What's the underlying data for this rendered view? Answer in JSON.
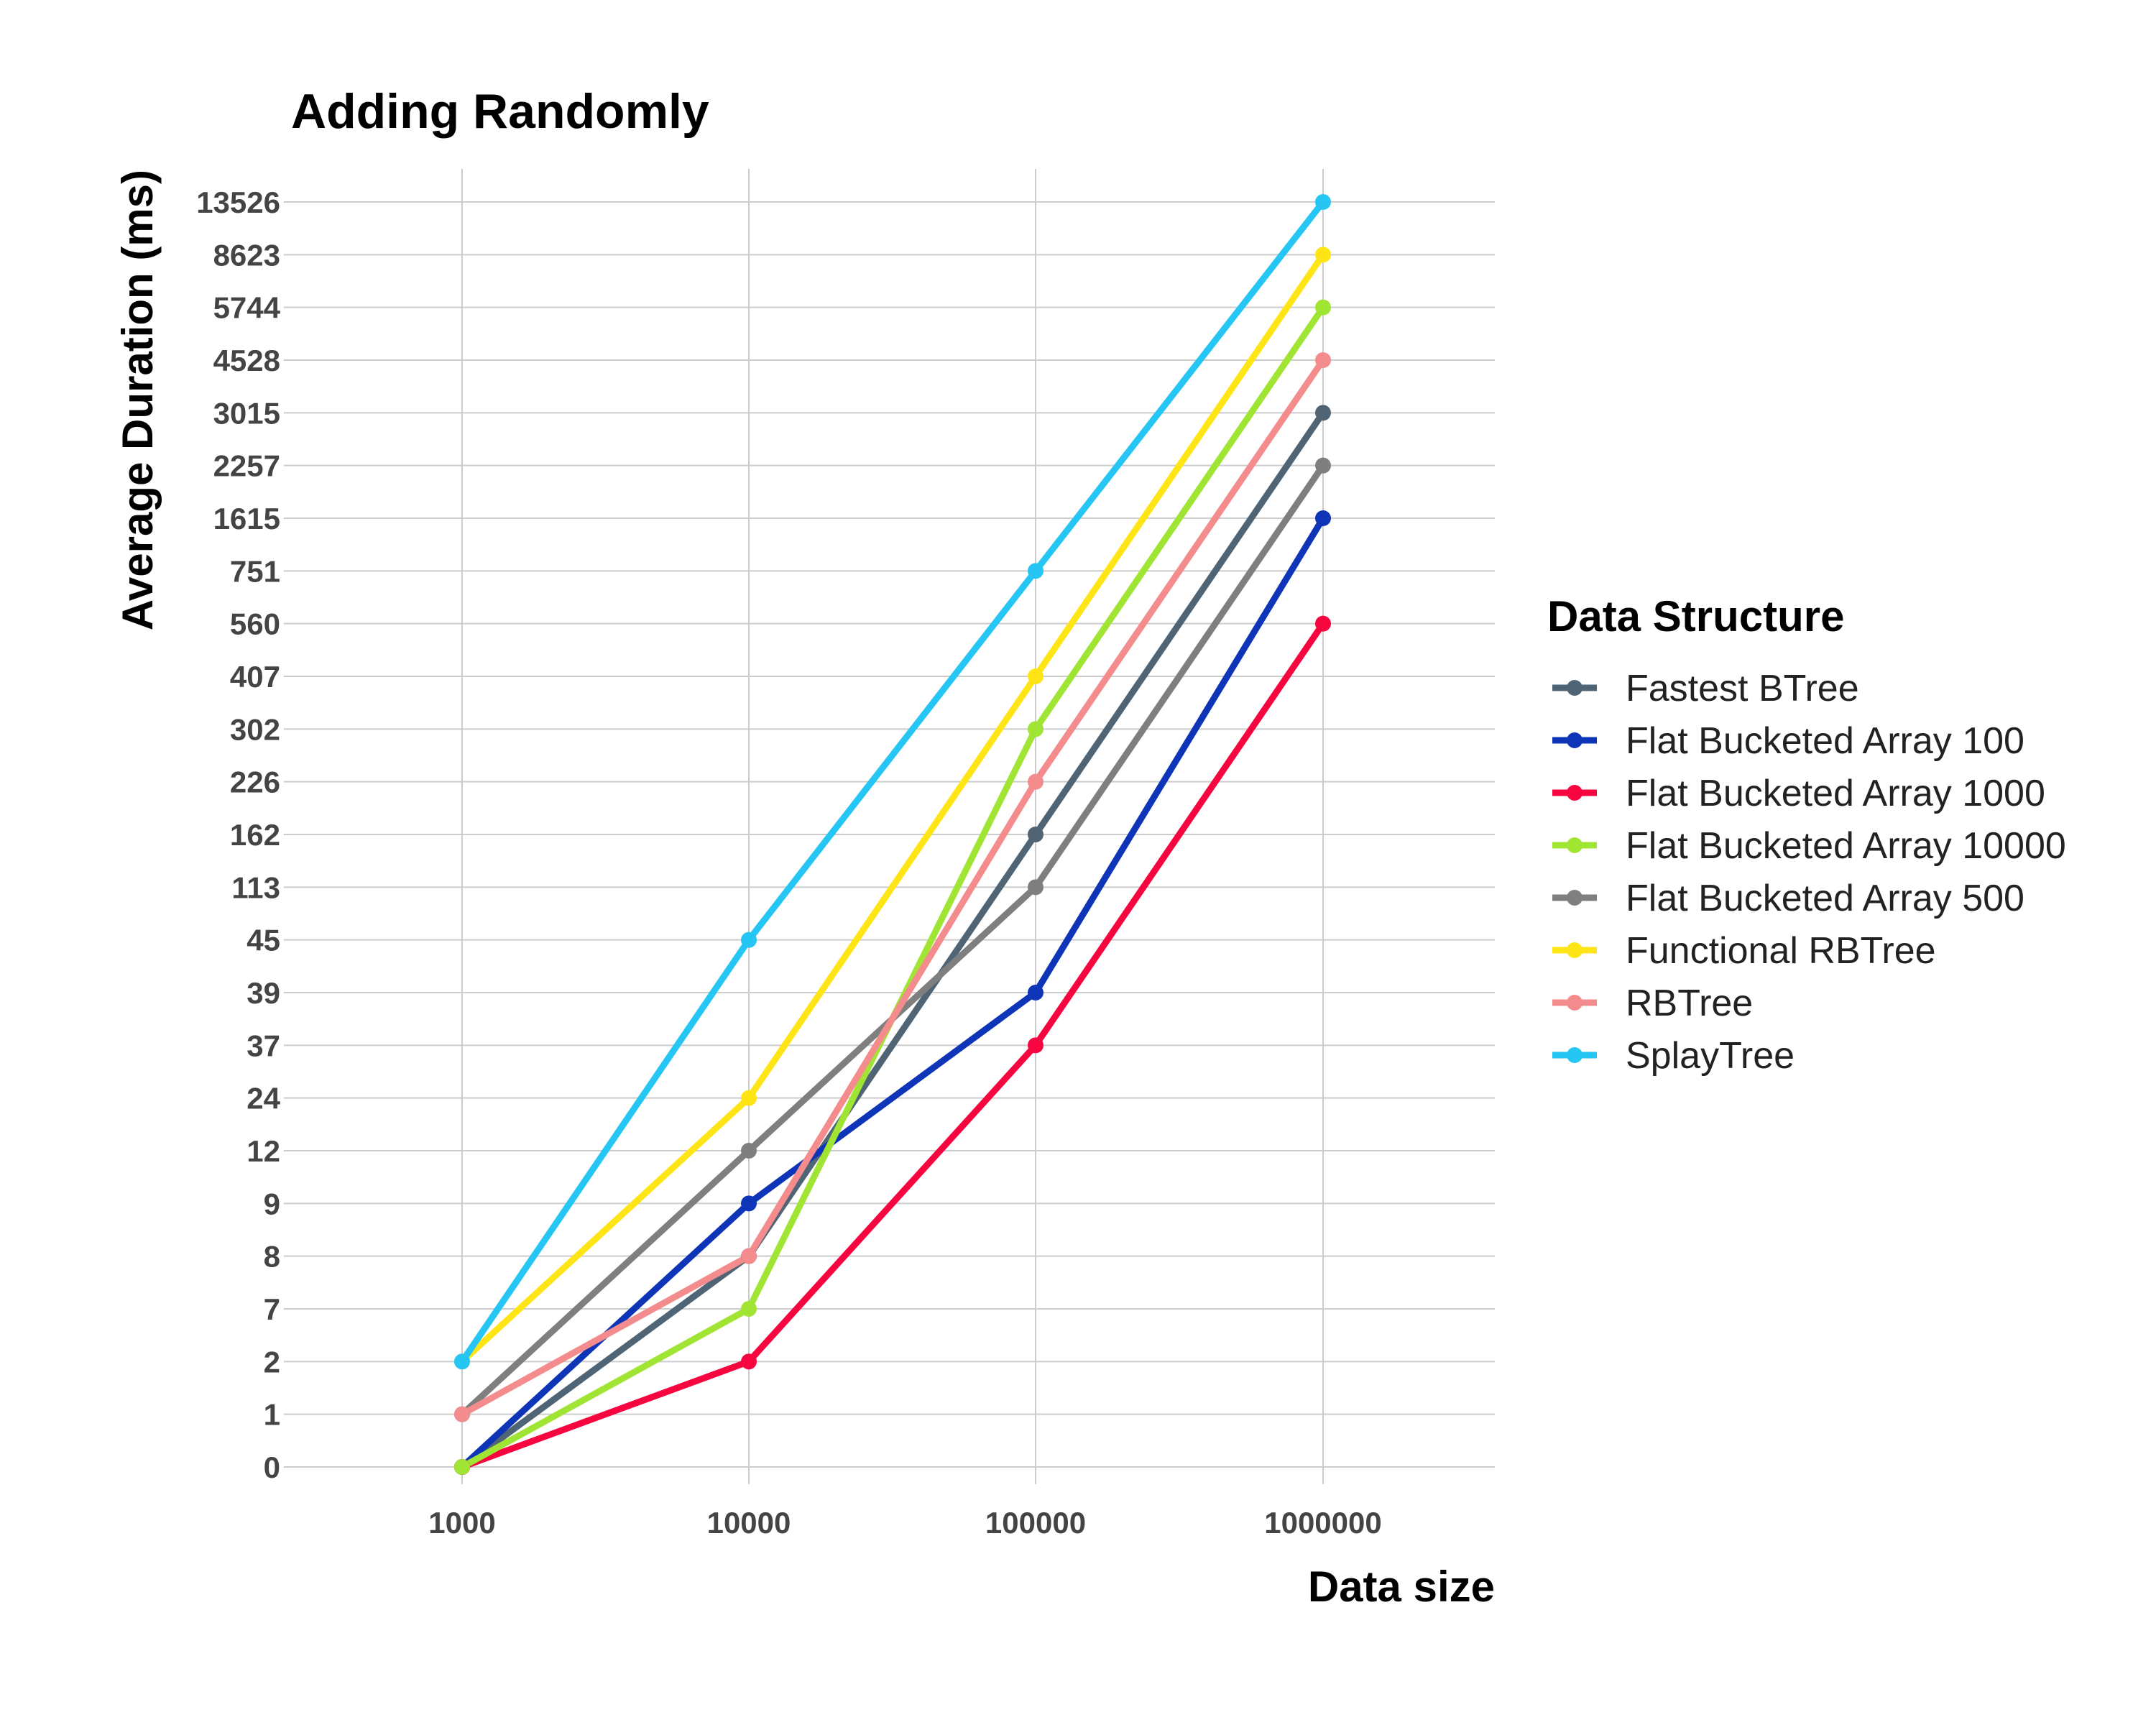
{
  "chart_data": {
    "type": "line",
    "title": "Adding Randomly",
    "xlabel": "Data size",
    "ylabel": "Average Duration (ms)",
    "x_scale": "categorical",
    "y_scale": "categorical",
    "x": [
      "1000",
      "10000",
      "100000",
      "1000000"
    ],
    "y_ticks": [
      "0",
      "1",
      "2",
      "7",
      "8",
      "9",
      "12",
      "24",
      "37",
      "39",
      "45",
      "113",
      "162",
      "226",
      "302",
      "407",
      "560",
      "751",
      "1615",
      "2257",
      "3015",
      "4528",
      "5744",
      "8623",
      "13526"
    ],
    "grid": true,
    "legend": {
      "title": "Data Structure",
      "placement": "right"
    },
    "series": [
      {
        "name": "Fastest BTree",
        "color": "#4f6575",
        "values": [
          0,
          8,
          162,
          3015
        ]
      },
      {
        "name": "Flat Bucketed Array 100",
        "color": "#0e35b7",
        "values": [
          0,
          9,
          39,
          1615
        ]
      },
      {
        "name": "Flat Bucketed Array 1000",
        "color": "#f7053f",
        "values": [
          0,
          2,
          37,
          560
        ]
      },
      {
        "name": "Flat Bucketed Array 10000",
        "color": "#a1e534",
        "values": [
          0,
          7,
          302,
          5744
        ]
      },
      {
        "name": "Flat Bucketed Array 500",
        "color": "#7f7f7f",
        "values": [
          1,
          12,
          113,
          2257
        ]
      },
      {
        "name": "Functional RBTree",
        "color": "#ffe516",
        "values": [
          2,
          24,
          407,
          8623
        ]
      },
      {
        "name": "RBTree",
        "color": "#f48b8c",
        "values": [
          1,
          8,
          226,
          4528
        ]
      },
      {
        "name": "SplayTree",
        "color": "#26c6f4",
        "values": [
          2,
          45,
          751,
          13526
        ]
      }
    ]
  }
}
